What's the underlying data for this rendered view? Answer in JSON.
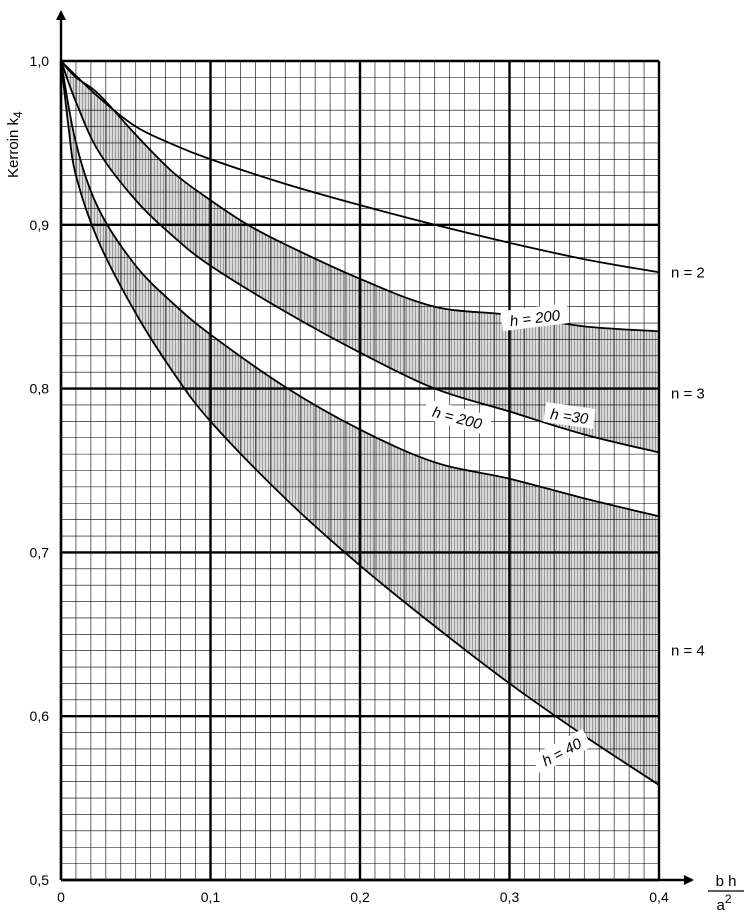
{
  "chart_data": {
    "type": "line",
    "ylabel": "Kerroin k",
    "ylabel_sub": "4",
    "xlabel_num": "b h",
    "xlabel_den": "a",
    "xlabel_den_sup": "2",
    "xlim": [
      0,
      0.4
    ],
    "ylim": [
      0.5,
      1.0
    ],
    "x_ticks": [
      {
        "v": 0,
        "t": "0"
      },
      {
        "v": 0.1,
        "t": "0,1"
      },
      {
        "v": 0.2,
        "t": "0,2"
      },
      {
        "v": 0.3,
        "t": "0,3"
      },
      {
        "v": 0.4,
        "t": "0,4"
      }
    ],
    "y_ticks": [
      {
        "v": 0.5,
        "t": "0,5"
      },
      {
        "v": 0.6,
        "t": "0,6"
      },
      {
        "v": 0.7,
        "t": "0,7"
      },
      {
        "v": 0.8,
        "t": "0,8"
      },
      {
        "v": 0.9,
        "t": "0,9"
      },
      {
        "v": 1.0,
        "t": "1,0"
      }
    ],
    "grid": true,
    "series": [
      {
        "id": "n2",
        "x": [
          0,
          0.025,
          0.05,
          0.075,
          0.1,
          0.15,
          0.2,
          0.25,
          0.3,
          0.35,
          0.4
        ],
        "y": [
          1.0,
          0.978,
          0.96,
          0.949,
          0.94,
          0.925,
          0.912,
          0.9,
          0.889,
          0.879,
          0.871
        ]
      },
      {
        "id": "n3_h200",
        "x": [
          0,
          0.01,
          0.025,
          0.05,
          0.075,
          0.1,
          0.125,
          0.15,
          0.2,
          0.25,
          0.3,
          0.35,
          0.4
        ],
        "y": [
          1.0,
          0.99,
          0.98,
          0.955,
          0.932,
          0.915,
          0.9,
          0.888,
          0.867,
          0.85,
          0.845,
          0.838,
          0.835
        ]
      },
      {
        "id": "n3_h30",
        "x": [
          0,
          0.01,
          0.025,
          0.05,
          0.075,
          0.1,
          0.15,
          0.2,
          0.25,
          0.3,
          0.35,
          0.4
        ],
        "y": [
          1.0,
          0.975,
          0.945,
          0.915,
          0.893,
          0.875,
          0.847,
          0.822,
          0.8,
          0.786,
          0.772,
          0.761
        ]
      },
      {
        "id": "n4_h200",
        "x": [
          0,
          0.01,
          0.025,
          0.05,
          0.075,
          0.1,
          0.15,
          0.2,
          0.25,
          0.3,
          0.35,
          0.4
        ],
        "y": [
          1.0,
          0.95,
          0.91,
          0.875,
          0.852,
          0.833,
          0.801,
          0.775,
          0.755,
          0.745,
          0.733,
          0.722
        ]
      },
      {
        "id": "n4_h40",
        "x": [
          0,
          0.005,
          0.01,
          0.025,
          0.05,
          0.075,
          0.1,
          0.15,
          0.2,
          0.25,
          0.3,
          0.35,
          0.4
        ],
        "y": [
          1.0,
          0.96,
          0.93,
          0.89,
          0.846,
          0.81,
          0.78,
          0.733,
          0.692,
          0.655,
          0.62,
          0.588,
          0.558
        ]
      }
    ],
    "bands": [
      {
        "upper": "n3_h200",
        "lower": "n3_h30"
      },
      {
        "upper": "n4_h200",
        "lower": "n4_h40"
      }
    ],
    "annotations": [
      {
        "name": "label-n2",
        "text": "n = 2",
        "x": 0.404,
        "y": 0.871,
        "kind": "n"
      },
      {
        "name": "label-n3",
        "text": "n = 3",
        "x": 0.404,
        "y": 0.797,
        "kind": "n"
      },
      {
        "name": "label-n4",
        "text": "n = 4",
        "x": 0.404,
        "y": 0.64,
        "kind": "n"
      },
      {
        "name": "label-n3-h200",
        "text": "h = 200",
        "x": 0.317,
        "y": 0.843,
        "kind": "h",
        "angle": -7
      },
      {
        "name": "label-n3-h30",
        "text": "h =30",
        "x": 0.34,
        "y": 0.783,
        "kind": "h",
        "angle": 8
      },
      {
        "name": "label-n4-h200",
        "text": "h = 200",
        "x": 0.265,
        "y": 0.782,
        "kind": "h",
        "angle": 15
      },
      {
        "name": "label-n4-h40",
        "text": "h = 40",
        "x": 0.335,
        "y": 0.578,
        "kind": "h",
        "angle": -28
      }
    ]
  }
}
